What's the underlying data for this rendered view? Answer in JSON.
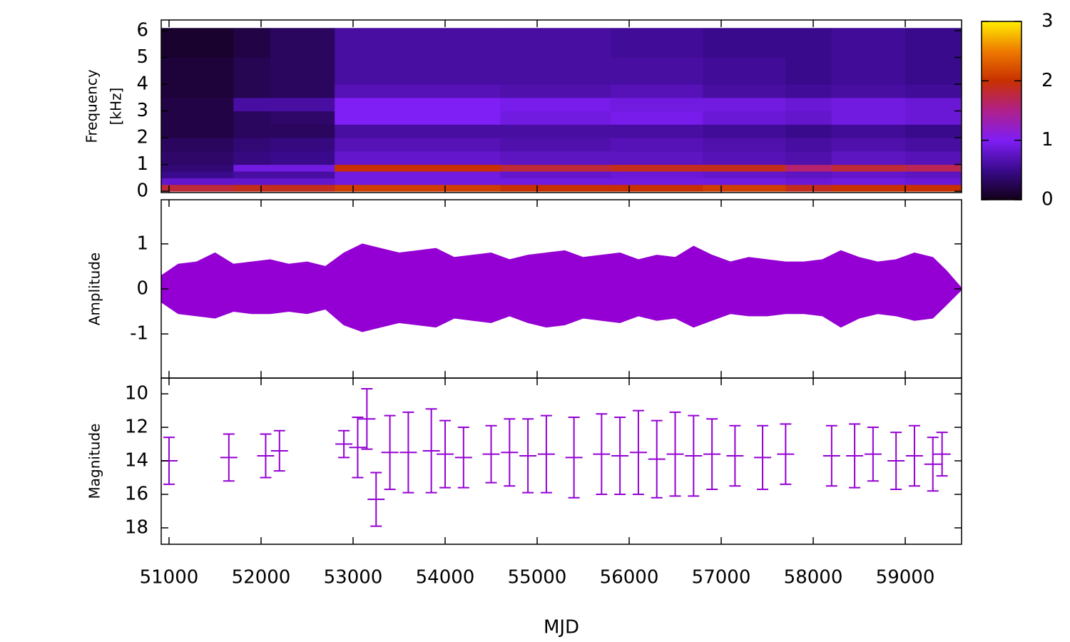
{
  "chart_data": [
    {
      "type": "heatmap",
      "ylabel": [
        "Frequency",
        "[kHz]"
      ],
      "x_edges": [
        50915,
        51700,
        52100,
        52800,
        54600,
        55800,
        56800,
        57700,
        58200,
        59000,
        59612
      ],
      "y_edges": [
        0,
        0.25,
        0.5,
        0.75,
        1.0,
        1.5,
        2,
        2.5,
        3,
        3.5,
        4,
        5,
        6.1
      ],
      "z": [
        [
          1.8,
          0.8,
          0.5,
          0.4,
          0.35,
          0.3,
          0.2,
          0.2,
          0.2,
          0.15,
          0.15,
          0.1
        ],
        [
          1.9,
          0.8,
          0.6,
          0.9,
          0.45,
          0.4,
          0.3,
          0.3,
          0.6,
          0.25,
          0.25,
          0.2
        ],
        [
          1.9,
          0.8,
          0.6,
          0.9,
          0.5,
          0.45,
          0.3,
          0.35,
          0.6,
          0.3,
          0.3,
          0.3
        ],
        [
          2.1,
          0.9,
          0.9,
          2.0,
          0.8,
          0.7,
          0.6,
          1.0,
          1.0,
          0.7,
          0.6,
          0.6
        ],
        [
          2.0,
          0.9,
          0.8,
          1.8,
          0.75,
          0.65,
          0.6,
          0.9,
          0.95,
          0.65,
          0.6,
          0.6
        ],
        [
          2.0,
          0.9,
          0.85,
          1.9,
          0.75,
          0.7,
          0.6,
          0.95,
          0.9,
          0.7,
          0.6,
          0.55
        ],
        [
          2.1,
          0.9,
          0.8,
          1.9,
          0.7,
          0.65,
          0.55,
          0.85,
          0.9,
          0.6,
          0.55,
          0.5
        ],
        [
          1.9,
          0.85,
          0.75,
          1.6,
          0.65,
          0.6,
          0.5,
          0.8,
          0.85,
          0.55,
          0.5,
          0.5
        ],
        [
          2.0,
          0.9,
          0.8,
          1.8,
          0.75,
          0.65,
          0.55,
          0.9,
          0.9,
          0.6,
          0.55,
          0.55
        ],
        [
          2.0,
          0.85,
          0.75,
          1.7,
          0.7,
          0.6,
          0.5,
          0.85,
          0.85,
          0.55,
          0.5,
          0.5
        ]
      ],
      "ylim": [
        -0.05,
        6.4
      ],
      "yticks": [
        0,
        1,
        2,
        3,
        4,
        5,
        6
      ],
      "colorbar": {
        "lim": [
          0,
          3
        ],
        "ticks": [
          0,
          1,
          2,
          3
        ],
        "colors": [
          "#120018",
          "#3a0a8c",
          "#7f1ef5",
          "#b0208a",
          "#c83000",
          "#ee7a00",
          "#ffee00"
        ]
      }
    },
    {
      "type": "area",
      "ylabel": "Amplitude",
      "color": "#9400d3",
      "x": [
        50920,
        51100,
        51300,
        51500,
        51700,
        51900,
        52100,
        52300,
        52500,
        52700,
        52900,
        53100,
        53300,
        53500,
        53700,
        53900,
        54100,
        54300,
        54500,
        54700,
        54900,
        55100,
        55300,
        55500,
        55700,
        55900,
        56100,
        56300,
        56500,
        56700,
        56900,
        57100,
        57300,
        57500,
        57700,
        57900,
        58100,
        58300,
        58500,
        58700,
        58900,
        59100,
        59300,
        59450,
        59612
      ],
      "upper": [
        0.3,
        0.55,
        0.6,
        0.8,
        0.55,
        0.6,
        0.65,
        0.55,
        0.6,
        0.5,
        0.8,
        1.0,
        0.9,
        0.8,
        0.85,
        0.9,
        0.7,
        0.75,
        0.8,
        0.65,
        0.75,
        0.8,
        0.85,
        0.7,
        0.75,
        0.8,
        0.65,
        0.75,
        0.7,
        0.95,
        0.75,
        0.6,
        0.7,
        0.65,
        0.6,
        0.6,
        0.65,
        0.85,
        0.7,
        0.6,
        0.65,
        0.8,
        0.7,
        0.4,
        0.02
      ],
      "lower": [
        -0.3,
        -0.55,
        -0.6,
        -0.65,
        -0.5,
        -0.55,
        -0.55,
        -0.5,
        -0.55,
        -0.45,
        -0.8,
        -0.95,
        -0.85,
        -0.75,
        -0.8,
        -0.85,
        -0.65,
        -0.7,
        -0.75,
        -0.6,
        -0.75,
        -0.85,
        -0.8,
        -0.65,
        -0.7,
        -0.75,
        -0.6,
        -0.7,
        -0.65,
        -0.85,
        -0.7,
        -0.55,
        -0.6,
        -0.6,
        -0.55,
        -0.55,
        -0.6,
        -0.85,
        -0.65,
        -0.55,
        -0.6,
        -0.7,
        -0.65,
        -0.35,
        -0.02
      ],
      "ylim": [
        -1.98,
        1.98
      ],
      "yticks": [
        -1,
        0,
        1
      ]
    },
    {
      "type": "errorbar",
      "ylabel": "Magnitude",
      "color": "#9400d3",
      "x": [
        51000,
        51650,
        52050,
        52200,
        52900,
        53050,
        53150,
        53250,
        53400,
        53600,
        53850,
        54000,
        54200,
        54500,
        54700,
        54900,
        55100,
        55400,
        55700,
        55900,
        56100,
        56300,
        56500,
        56700,
        56900,
        57150,
        57450,
        57700,
        58200,
        58450,
        58650,
        58900,
        59100,
        59300,
        59400
      ],
      "values": [
        14.0,
        13.8,
        13.7,
        13.4,
        13.0,
        13.2,
        11.5,
        16.3,
        13.5,
        13.5,
        13.4,
        13.6,
        13.8,
        13.6,
        13.5,
        13.7,
        13.6,
        13.8,
        13.6,
        13.7,
        13.5,
        13.9,
        13.6,
        13.7,
        13.6,
        13.7,
        13.8,
        13.6,
        13.7,
        13.7,
        13.6,
        14.0,
        13.7,
        14.2,
        13.6
      ],
      "errors": [
        1.4,
        1.4,
        1.3,
        1.2,
        0.8,
        1.8,
        1.8,
        1.6,
        2.2,
        2.4,
        2.5,
        2.0,
        1.8,
        1.7,
        2.0,
        2.2,
        2.3,
        2.4,
        2.4,
        2.3,
        2.5,
        2.3,
        2.5,
        2.4,
        2.1,
        1.8,
        1.9,
        1.8,
        1.8,
        1.9,
        1.6,
        1.7,
        1.8,
        1.6,
        1.3
      ],
      "ylim": [
        18.98,
        9.06
      ],
      "yticks": [
        10,
        12,
        14,
        16,
        18
      ],
      "xlabel": "MJD",
      "xlim": [
        50915,
        59612
      ],
      "xticks": [
        51000,
        52000,
        53000,
        54000,
        55000,
        56000,
        57000,
        58000,
        59000
      ]
    }
  ]
}
